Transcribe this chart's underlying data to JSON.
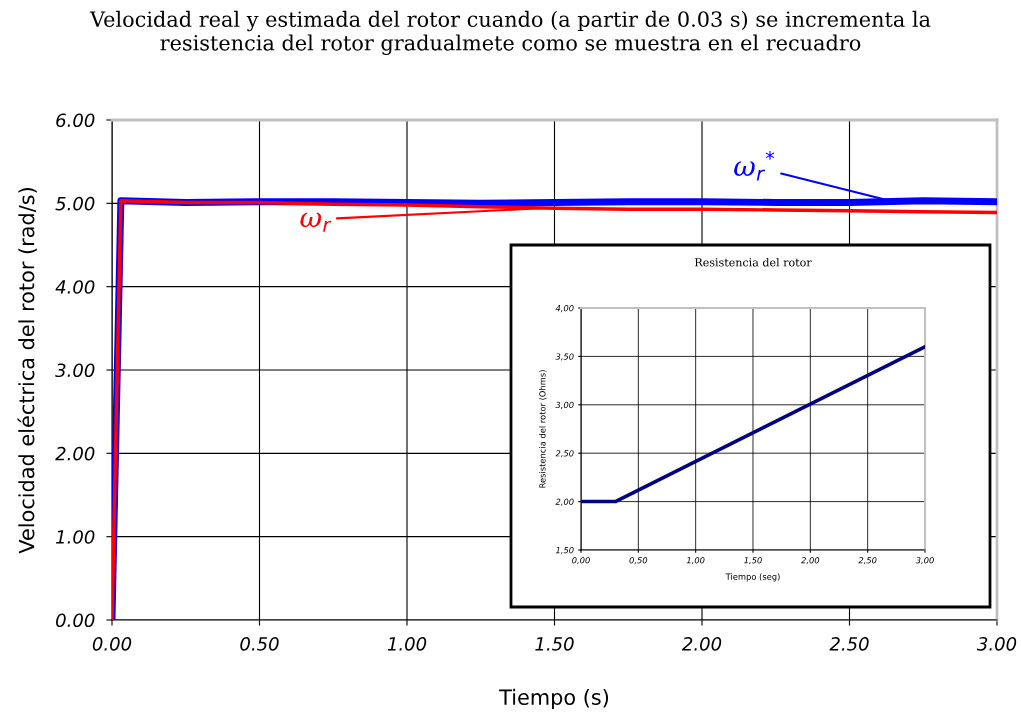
{
  "chart_data": [
    {
      "type": "line",
      "title": "Velocidad real y estimada del rotor cuando (a partir de 0.03 s) se incrementa la\nresistencia del rotor gradualmete como se muestra en el recuadro",
      "xlabel": "Tiempo (s)",
      "ylabel": "Velocidad eléctrica del rotor (rad/s)",
      "series": [
        {
          "color": "#0000ff",
          "x": [
            0,
            0.03,
            0.25,
            0.5,
            0.75,
            1.0,
            1.25,
            1.5,
            1.75,
            2.0,
            2.25,
            2.5,
            2.75,
            3.0
          ],
          "values": [
            0,
            5.03,
            5.01,
            5.02,
            5.02,
            5.01,
            5.0,
            5.01,
            5.02,
            5.02,
            5.01,
            5.01,
            5.03,
            5.02
          ]
        },
        {
          "color": "#ff0000",
          "x": [
            0,
            0.03,
            0.25,
            0.5,
            0.75,
            1.0,
            1.25,
            1.5,
            1.75,
            2.0,
            2.25,
            2.5,
            2.75,
            3.0
          ],
          "values": [
            0,
            5.03,
            5.01,
            5.01,
            4.99,
            4.98,
            4.96,
            4.94,
            4.93,
            4.93,
            4.92,
            4.91,
            4.9,
            4.89
          ]
        }
      ],
      "annotations": [
        {
          "text": "ω$_{r}$$^{*}$",
          "x": 2.65,
          "y": 5.02
        },
        {
          "text": "ω$_{r}$",
          "x": 1.45,
          "y": 4.94
        }
      ],
      "xlim": [
        0,
        3
      ],
      "xticks": [
        {
          "value": 0,
          "label": "0.00"
        },
        {
          "value": 0.5,
          "label": "0.50"
        },
        {
          "value": 1,
          "label": "1.00"
        },
        {
          "value": 1.5,
          "label": "1.50"
        },
        {
          "value": 2,
          "label": "2.00"
        },
        {
          "value": 2.5,
          "label": "2.50"
        },
        {
          "value": 3,
          "label": "3.00"
        }
      ],
      "ylim": [
        0,
        6
      ],
      "yticks": [
        {
          "value": 0,
          "label": "0.00"
        },
        {
          "value": 1,
          "label": "1.00"
        },
        {
          "value": 2,
          "label": "2.00"
        },
        {
          "value": 3,
          "label": "3.00"
        },
        {
          "value": 4,
          "label": "4.00"
        },
        {
          "value": 5,
          "label": "5.00"
        },
        {
          "value": 6,
          "label": "6.00"
        }
      ],
      "grid": true
    },
    {
      "type": "line",
      "title": "Resistencia del rotor",
      "xlabel": "Tiempo (seg)",
      "ylabel": "Resistencia del rotor (Ohms)",
      "series": [
        {
          "color": "#000080",
          "x": [
            0,
            0.3,
            3.0
          ],
          "values": [
            2.0,
            2.0,
            3.6
          ]
        }
      ],
      "xlim": [
        0,
        3
      ],
      "xticks": [
        {
          "value": 0,
          "label": "0,00"
        },
        {
          "value": 0.5,
          "label": "0,50"
        },
        {
          "value": 1,
          "label": "1,00"
        },
        {
          "value": 1.5,
          "label": "1,50"
        },
        {
          "value": 2,
          "label": "2,00"
        },
        {
          "value": 2.5,
          "label": "2,50"
        },
        {
          "value": 3,
          "label": "3,00"
        }
      ],
      "ylim": [
        1.5,
        4
      ],
      "yticks": [
        {
          "value": 1.5,
          "label": "1,50"
        },
        {
          "value": 2,
          "label": "2,00"
        },
        {
          "value": 2.5,
          "label": "2,50"
        },
        {
          "value": 3,
          "label": "3,00"
        },
        {
          "value": 3.5,
          "label": "3,50"
        },
        {
          "value": 4,
          "label": "4,00"
        }
      ],
      "grid": true
    }
  ]
}
